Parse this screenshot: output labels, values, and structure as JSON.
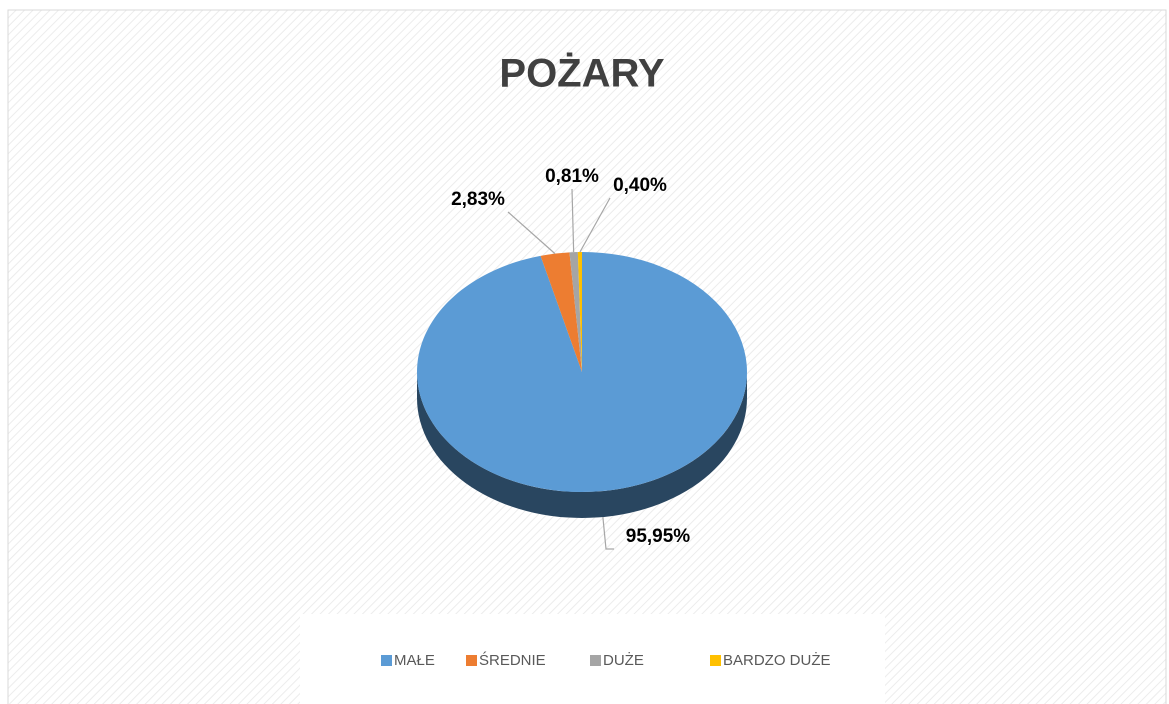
{
  "chart_data": {
    "type": "pie",
    "title": "POŻARY",
    "categories": [
      "MAŁE",
      "ŚREDNIE",
      "DUŻE",
      "BARDZO DUŻE"
    ],
    "values": [
      95.95,
      2.83,
      0.81,
      0.4
    ],
    "value_labels": [
      "95,95%",
      "2,83%",
      "0,81%",
      "0,40%"
    ],
    "colors": [
      "#5b9bd5",
      "#ed7d31",
      "#a5a5a5",
      "#ffc000"
    ],
    "legend": "bottom"
  }
}
